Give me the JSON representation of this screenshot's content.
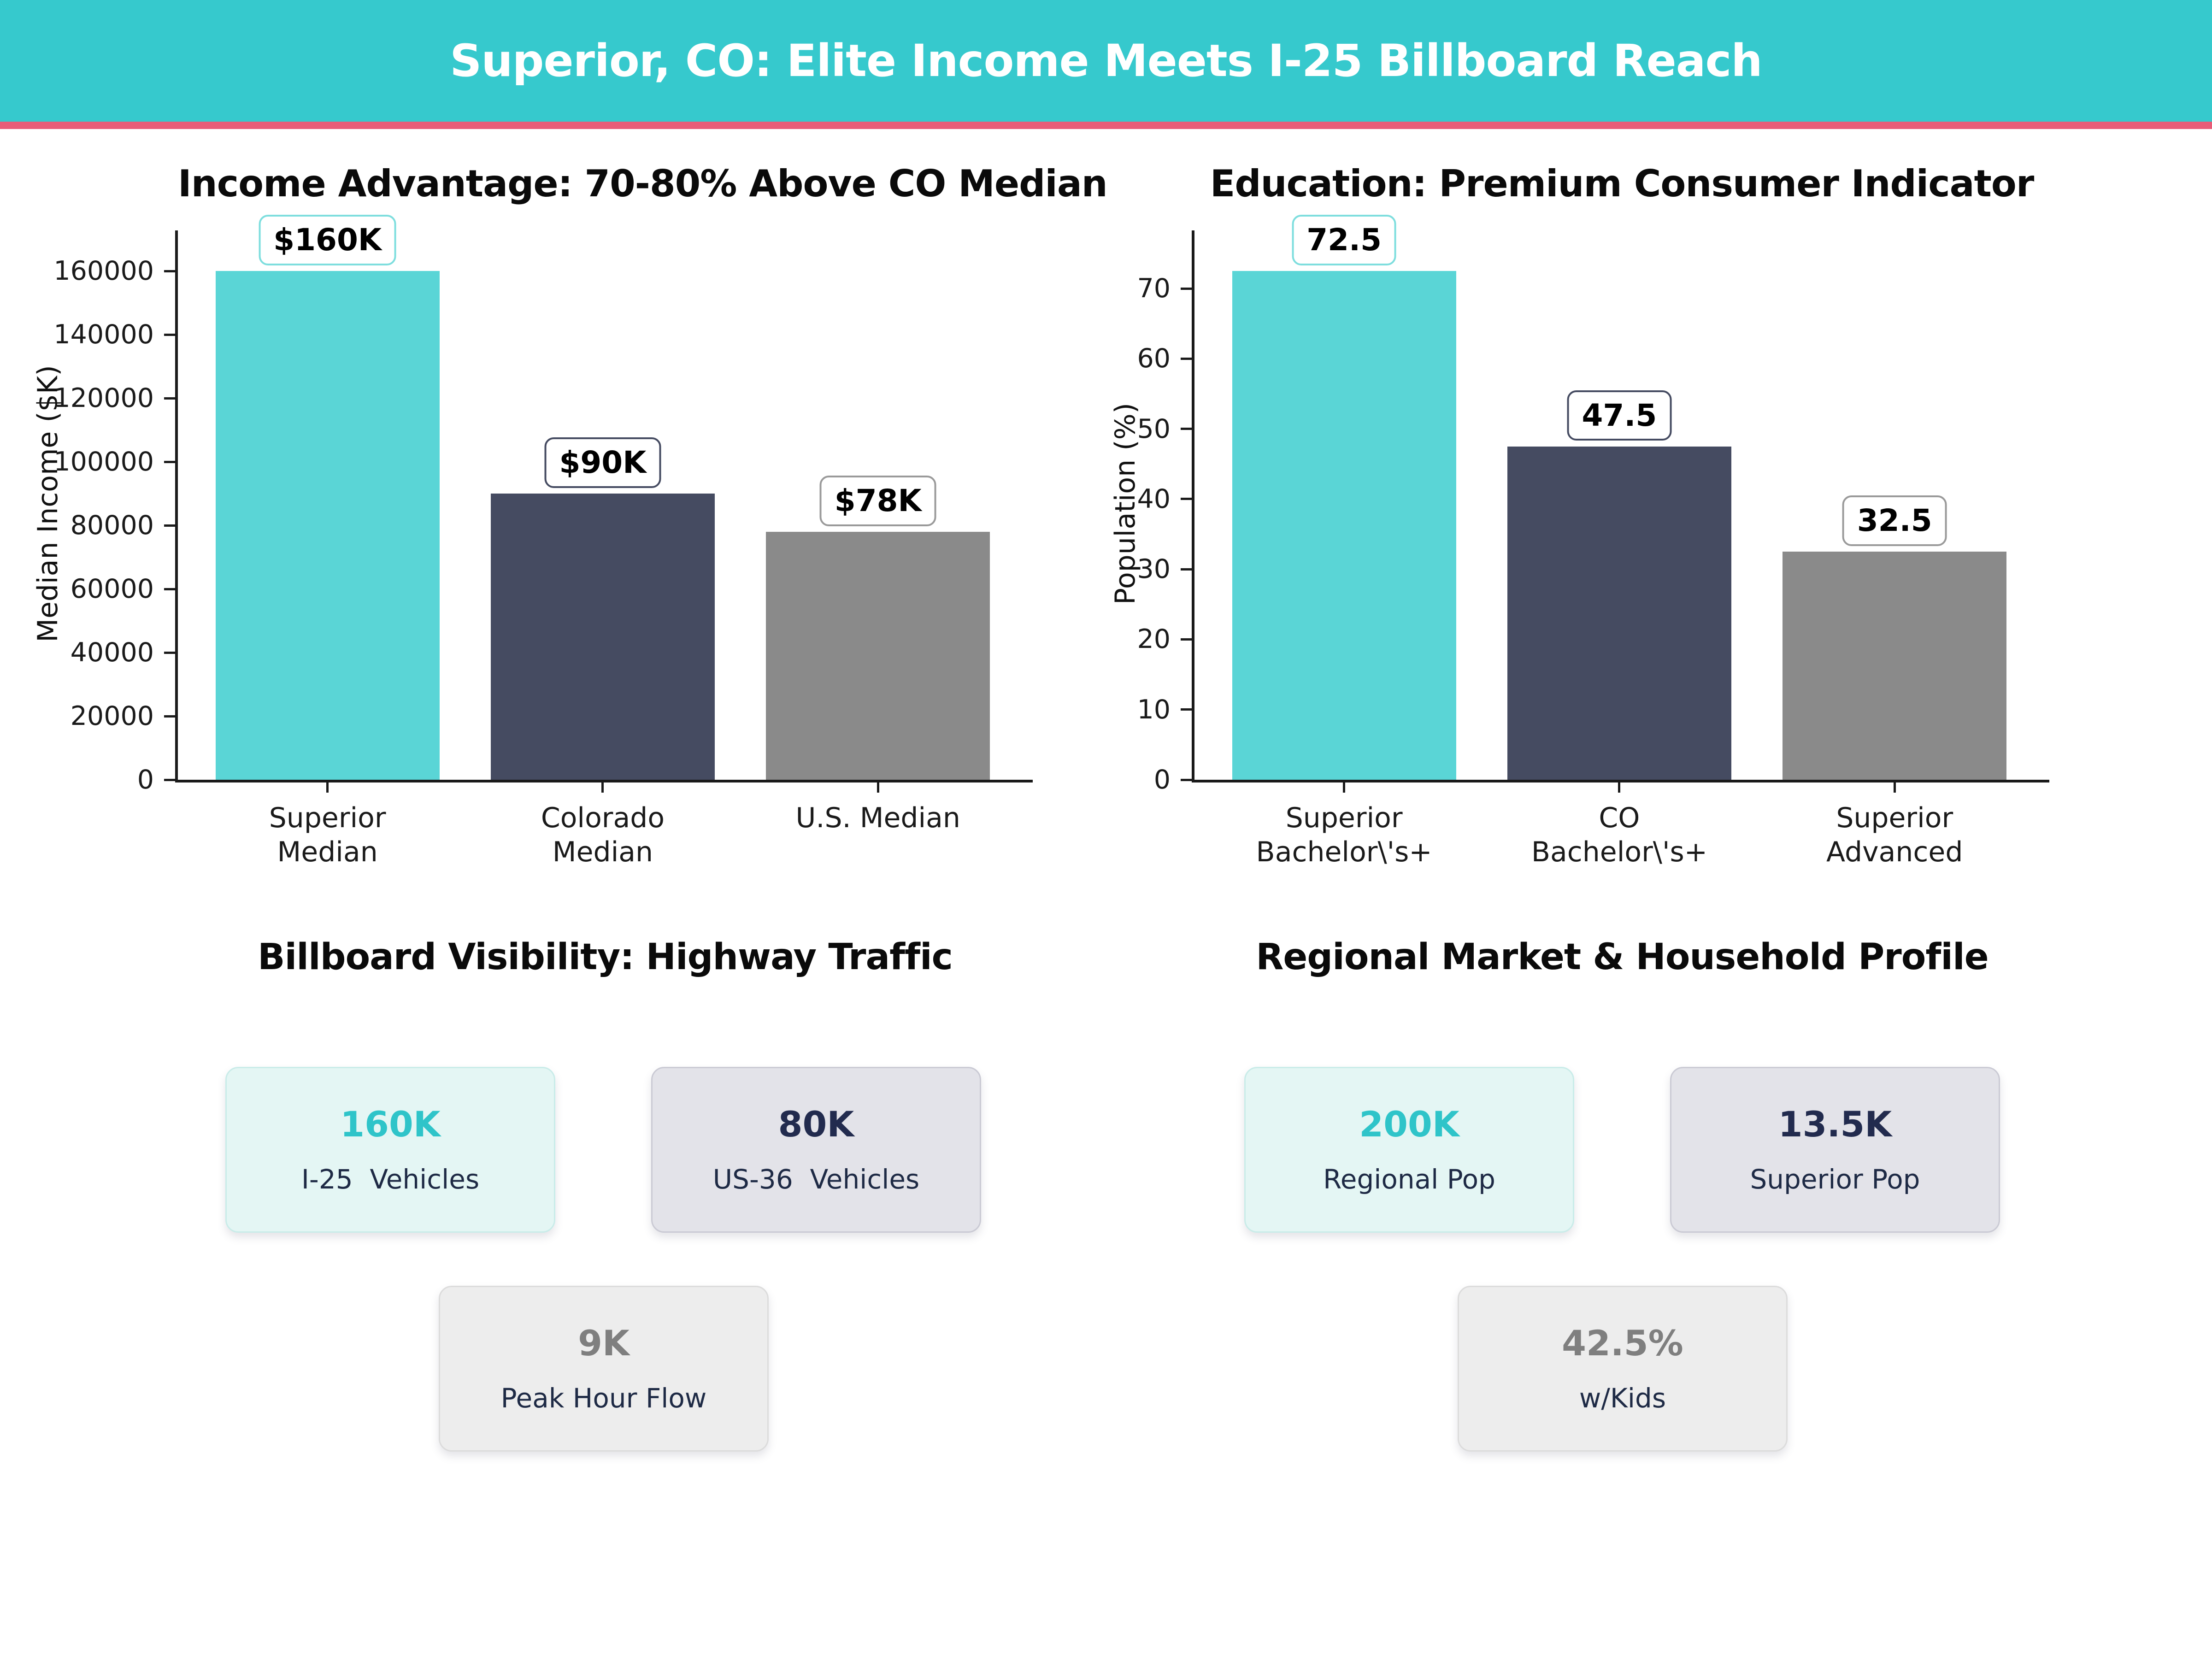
{
  "header": {
    "title": "Superior, CO: Elite Income Meets I-25 Billboard Reach"
  },
  "palette": {
    "header_bg": "#36c9cd",
    "header_accent": "#e85d78",
    "teal_bar": "#5ad5d6",
    "navy_bar": "#454b61",
    "gray_bar": "#8a8a8a",
    "card_teal_bg": "#e4f6f4",
    "card_teal_border": "#c9ece9",
    "card_teal_num": "#2fc4c9",
    "card_navy_bg": "#e3e3e9",
    "card_navy_border": "#cacad4",
    "card_navy_num": "#222b4e",
    "card_gray_bg": "#ededed",
    "card_gray_border": "#dcdcdc",
    "card_gray_num": "#7f7f7f",
    "card_label": "#1e2a45"
  },
  "chart_data": [
    {
      "type": "bar",
      "title": "Income Advantage: 70-80% Above CO Median",
      "xlabel": "",
      "ylabel": "Median Income ($K)",
      "categories": [
        "Superior\nMedian",
        "Colorado\nMedian",
        "U.S. Median"
      ],
      "values": [
        160000,
        90000,
        78000
      ],
      "bar_labels": [
        "$160K",
        "$90K",
        "$78K"
      ],
      "bar_colors": [
        "#5ad5d6",
        "#454b61",
        "#8a8a8a"
      ],
      "label_border_colors": [
        "#7edede",
        "#454b61",
        "#9a9a9a"
      ],
      "yticks": [
        0,
        20000,
        40000,
        60000,
        80000,
        100000,
        120000,
        140000,
        160000
      ],
      "ylim": [
        0,
        172500
      ],
      "grid": false,
      "legend": null
    },
    {
      "type": "bar",
      "title": "Education: Premium Consumer Indicator",
      "xlabel": "",
      "ylabel": "Population (%)",
      "categories": [
        "Superior\nBachelor\\'s+",
        "CO\nBachelor\\'s+",
        "Superior\nAdvanced"
      ],
      "values": [
        72.5,
        47.5,
        32.5
      ],
      "bar_labels": [
        "72.5",
        "47.5",
        "32.5"
      ],
      "bar_colors": [
        "#5ad5d6",
        "#454b61",
        "#8a8a8a"
      ],
      "label_border_colors": [
        "#7edede",
        "#454b61",
        "#9a9a9a"
      ],
      "yticks": [
        0,
        10,
        20,
        30,
        40,
        50,
        60,
        70
      ],
      "ylim": [
        0,
        78
      ],
      "grid": false,
      "legend": null
    }
  ],
  "sections": [
    {
      "title": "Billboard Visibility: Highway Traffic",
      "cards": [
        {
          "value": "160K",
          "label": "I-25  Vehicles",
          "style": "teal"
        },
        {
          "value": "80K",
          "label": "US-36  Vehicles",
          "style": "navy"
        },
        {
          "value": "9K",
          "label": "Peak Hour Flow",
          "style": "gray"
        }
      ]
    },
    {
      "title": "Regional Market & Household Profile",
      "cards": [
        {
          "value": "200K",
          "label": "Regional Pop",
          "style": "teal"
        },
        {
          "value": "13.5K",
          "label": "Superior Pop",
          "style": "navy"
        },
        {
          "value": "42.5%",
          "label": "w/Kids",
          "style": "gray"
        }
      ]
    }
  ]
}
